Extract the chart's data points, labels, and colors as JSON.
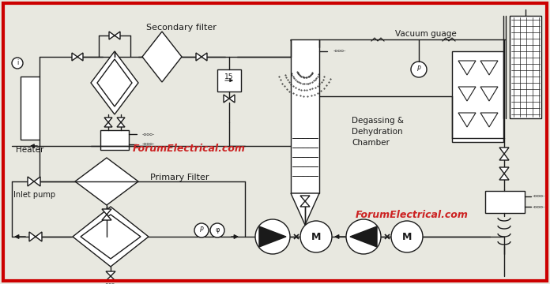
{
  "bg_color": "#e8e8e0",
  "border_color": "#cc0000",
  "lc": "#1a1a1a",
  "red": "#cc2222",
  "watermark1": "ForumElectrical.com",
  "watermark2": "ForumElectrical.com",
  "lbl_heater": "Heater",
  "lbl_sec_filter": "Secondary filter",
  "lbl_vacuum": "Vacuum guage",
  "lbl_degassing": "Degassing &",
  "lbl_dehydration": "Dehydration",
  "lbl_chamber": "Chamber",
  "lbl_inlet": "Inlet pump",
  "lbl_primary": "Primary Filter",
  "lbl_15": "15"
}
